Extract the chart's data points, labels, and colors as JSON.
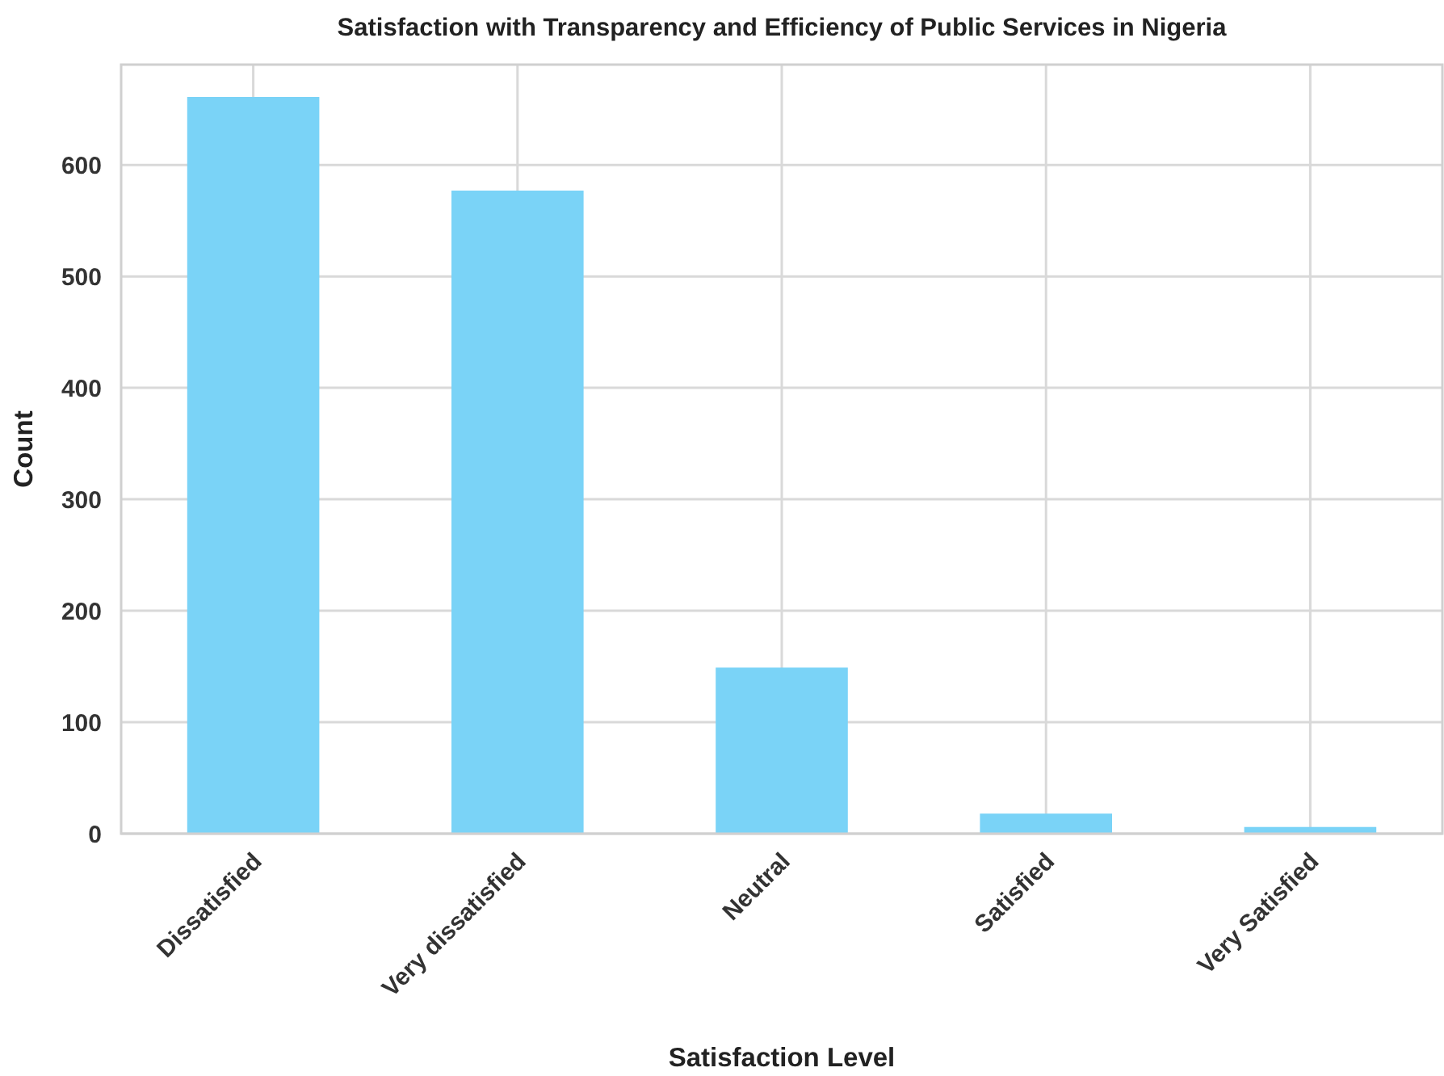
{
  "chart_data": {
    "type": "bar",
    "title": "Satisfaction with Transparency and Efficiency of Public Services in Nigeria",
    "xlabel": "Satisfaction Level",
    "ylabel": "Count",
    "categories": [
      "Dissatisfied",
      "Very dissatisfied",
      "Neutral",
      "Satisfied",
      "Very Satisfied"
    ],
    "values": [
      661,
      577,
      149,
      18,
      6
    ],
    "color": "#7ad3f7",
    "ylim": [
      0,
      690
    ],
    "yticks": [
      0,
      100,
      200,
      300,
      400,
      500,
      600
    ],
    "grid": true
  }
}
